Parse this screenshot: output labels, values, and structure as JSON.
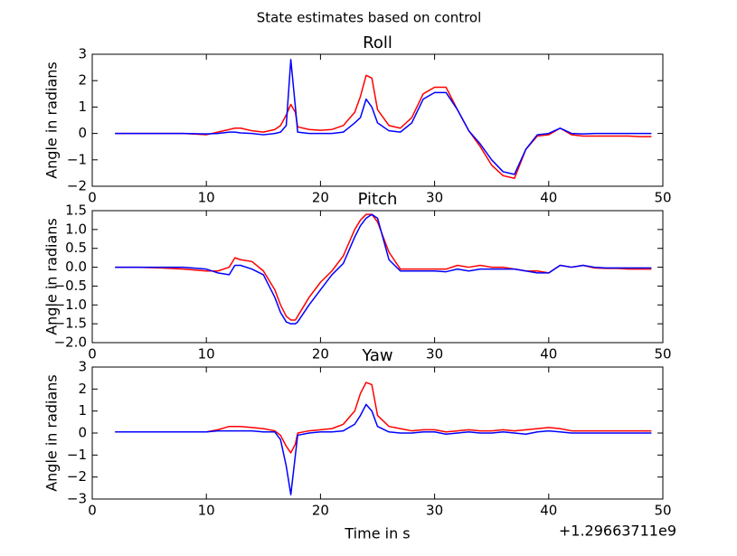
{
  "title": "State estimates based on control",
  "chart_data": [
    {
      "type": "line",
      "title": "Roll",
      "ylabel": "Angle in radians",
      "x": [
        2,
        4,
        6,
        8,
        10,
        11,
        12,
        12.5,
        13,
        14,
        15,
        16,
        16.5,
        17,
        17.4,
        17.8,
        18,
        19,
        20,
        21,
        22,
        23,
        23.5,
        24,
        24.5,
        25,
        26,
        27,
        28,
        29,
        30,
        31,
        32,
        33,
        34,
        35,
        36,
        37,
        38,
        39,
        40,
        41,
        42,
        43,
        44,
        45,
        46,
        47,
        48,
        49
      ],
      "series": [
        {
          "color": "#ff0000",
          "values": [
            0,
            0,
            0,
            0,
            -0.05,
            0.05,
            0.15,
            0.2,
            0.2,
            0.1,
            0.05,
            0.15,
            0.3,
            0.7,
            1.1,
            0.8,
            0.25,
            0.15,
            0.12,
            0.15,
            0.3,
            0.8,
            1.4,
            2.2,
            2.1,
            0.9,
            0.3,
            0.2,
            0.6,
            1.5,
            1.75,
            1.75,
            0.9,
            0.1,
            -0.5,
            -1.2,
            -1.6,
            -1.7,
            -0.6,
            -0.1,
            -0.05,
            0.2,
            -0.05,
            -0.1,
            -0.1,
            -0.1,
            -0.1,
            -0.1,
            -0.12,
            -0.12
          ]
        },
        {
          "color": "#0000ff",
          "values": [
            0,
            0,
            0,
            0,
            -0.02,
            0,
            0.05,
            0.05,
            0.02,
            0,
            -0.05,
            0,
            0.05,
            0.3,
            2.8,
            1.0,
            0.05,
            0,
            0,
            0,
            0.05,
            0.4,
            0.6,
            1.3,
            1.0,
            0.4,
            0.1,
            0.05,
            0.4,
            1.3,
            1.55,
            1.55,
            0.9,
            0.1,
            -0.4,
            -1.0,
            -1.45,
            -1.55,
            -0.6,
            -0.05,
            0,
            0.2,
            0,
            -0.02,
            0,
            0,
            0,
            0,
            0,
            0
          ]
        }
      ],
      "xlim": [
        0,
        50
      ],
      "xticks": [
        0,
        10,
        20,
        30,
        40,
        50
      ],
      "ylim": [
        -2,
        3
      ],
      "yticks": [
        {
          "value": -2,
          "label": "−2"
        },
        {
          "value": -1,
          "label": "−1"
        },
        0,
        1,
        2,
        3
      ]
    },
    {
      "type": "line",
      "title": "Pitch",
      "ylabel": "Angle in radians",
      "x": [
        2,
        4,
        6,
        8,
        10,
        11,
        12,
        12.5,
        13,
        14,
        15,
        16,
        16.5,
        17,
        17.4,
        17.8,
        18,
        19,
        20,
        21,
        22,
        23,
        23.5,
        24,
        24.5,
        25,
        26,
        27,
        28,
        29,
        30,
        31,
        32,
        33,
        34,
        35,
        36,
        37,
        38,
        39,
        40,
        41,
        42,
        43,
        44,
        45,
        46,
        47,
        48,
        49
      ],
      "series": [
        {
          "color": "#ff0000",
          "values": [
            0,
            0,
            -0.02,
            -0.05,
            -0.1,
            -0.1,
            0,
            0.25,
            0.2,
            0.15,
            -0.1,
            -0.6,
            -1.0,
            -1.3,
            -1.4,
            -1.4,
            -1.3,
            -0.8,
            -0.4,
            -0.1,
            0.3,
            1.0,
            1.25,
            1.4,
            1.4,
            1.2,
            0.4,
            -0.05,
            -0.05,
            -0.05,
            -0.05,
            -0.05,
            0.05,
            0,
            0.05,
            0,
            0,
            -0.05,
            -0.1,
            -0.1,
            -0.15,
            0.05,
            0,
            0.05,
            -0.02,
            -0.03,
            -0.03,
            -0.05,
            -0.05,
            -0.05
          ]
        },
        {
          "color": "#0000ff",
          "values": [
            0,
            0,
            0,
            0,
            -0.05,
            -0.15,
            -0.2,
            0.05,
            0.05,
            -0.05,
            -0.2,
            -0.8,
            -1.2,
            -1.45,
            -1.5,
            -1.5,
            -1.45,
            -1.0,
            -0.6,
            -0.2,
            0.1,
            0.8,
            1.1,
            1.3,
            1.4,
            1.3,
            0.2,
            -0.1,
            -0.1,
            -0.1,
            -0.1,
            -0.12,
            -0.05,
            -0.1,
            -0.05,
            -0.05,
            -0.05,
            -0.05,
            -0.1,
            -0.15,
            -0.15,
            0.05,
            0,
            0.05,
            0,
            -0.02,
            -0.02,
            -0.02,
            -0.02,
            -0.02
          ]
        }
      ],
      "xlim": [
        0,
        50
      ],
      "xticks": [
        0,
        10,
        20,
        30,
        40,
        50
      ],
      "ylim": [
        -2,
        1.5
      ],
      "yticks": [
        {
          "value": -2,
          "label": "−2.0"
        },
        {
          "value": -1.5,
          "label": "−1.5"
        },
        {
          "value": -1,
          "label": "−1.0"
        },
        {
          "value": -0.5,
          "label": "−0.5"
        },
        {
          "value": 0,
          "label": "0.0"
        },
        0.5,
        {
          "value": 1,
          "label": "1.0"
        },
        1.5
      ]
    },
    {
      "type": "line",
      "title": "Yaw",
      "ylabel": "Angle in radians",
      "xlabel": "Time in s",
      "x_offset_text": "+1.29663711e9",
      "x": [
        2,
        4,
        6,
        8,
        10,
        11,
        12,
        12.5,
        13,
        14,
        15,
        16,
        16.5,
        17,
        17.4,
        17.8,
        18,
        19,
        20,
        21,
        22,
        23,
        23.5,
        24,
        24.5,
        25,
        26,
        27,
        28,
        29,
        30,
        31,
        32,
        33,
        34,
        35,
        36,
        37,
        38,
        39,
        40,
        41,
        42,
        43,
        44,
        45,
        46,
        47,
        48,
        49
      ],
      "series": [
        {
          "color": "#ff0000",
          "values": [
            0.05,
            0.05,
            0.05,
            0.05,
            0.05,
            0.15,
            0.3,
            0.3,
            0.3,
            0.25,
            0.2,
            0.1,
            -0.1,
            -0.6,
            -0.9,
            -0.5,
            0,
            0.1,
            0.15,
            0.2,
            0.4,
            1.0,
            1.8,
            2.3,
            2.2,
            0.8,
            0.3,
            0.2,
            0.1,
            0.15,
            0.15,
            0.05,
            0.1,
            0.15,
            0.1,
            0.1,
            0.15,
            0.1,
            0.15,
            0.2,
            0.25,
            0.2,
            0.1,
            0.1,
            0.1,
            0.1,
            0.1,
            0.1,
            0.1,
            0.1
          ]
        },
        {
          "color": "#0000ff",
          "values": [
            0.05,
            0.05,
            0.05,
            0.05,
            0.05,
            0.1,
            0.1,
            0.1,
            0.1,
            0.1,
            0.05,
            0.05,
            -0.3,
            -1.5,
            -2.8,
            -1.0,
            -0.1,
            0,
            0.05,
            0.05,
            0.1,
            0.4,
            0.8,
            1.3,
            1.0,
            0.3,
            0.05,
            0,
            0,
            0.05,
            0.05,
            -0.05,
            0,
            0.05,
            0,
            0,
            0.05,
            0,
            -0.05,
            0.05,
            0.1,
            0.05,
            0,
            0,
            0,
            0,
            0,
            0,
            0,
            0
          ]
        }
      ],
      "xlim": [
        0,
        50
      ],
      "xticks": [
        0,
        10,
        20,
        30,
        40,
        50
      ],
      "ylim": [
        -3,
        3
      ],
      "yticks": [
        {
          "value": -3,
          "label": "−3"
        },
        {
          "value": -2,
          "label": "−2"
        },
        {
          "value": -1,
          "label": "−1"
        },
        0,
        1,
        2,
        3
      ]
    }
  ]
}
